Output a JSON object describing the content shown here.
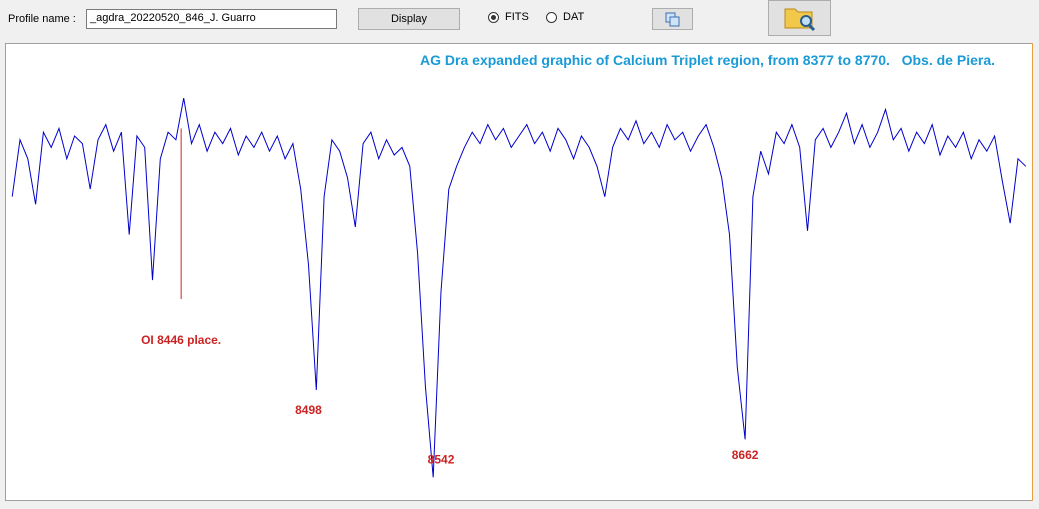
{
  "toolbar": {
    "profile_label": "Profile name :",
    "profile_value": "_agdra_20220520_846_J. Guarro",
    "display_button": "Display",
    "formats": [
      "FITS",
      "DAT"
    ],
    "selected_format": "FITS"
  },
  "chart_data": {
    "type": "line",
    "title": "AG Dra expanded graphic of Calcium Triplet region, from 8377 to 8770.   Obs. de Piera.",
    "x": [
      8381,
      8384,
      8387,
      8390,
      8393,
      8396,
      8399,
      8402,
      8405,
      8408,
      8411,
      8414,
      8417,
      8420,
      8423,
      8426,
      8429,
      8432,
      8435,
      8438,
      8441,
      8444,
      8447,
      8450,
      8453,
      8456,
      8459,
      8462,
      8465,
      8468,
      8471,
      8474,
      8477,
      8480,
      8483,
      8486,
      8489,
      8492,
      8495,
      8498,
      8501,
      8504,
      8507,
      8510,
      8513,
      8516,
      8519,
      8522,
      8525,
      8528,
      8531,
      8534,
      8537,
      8540,
      8543,
      8546,
      8549,
      8552,
      8555,
      8558,
      8561,
      8564,
      8567,
      8570,
      8573,
      8576,
      8579,
      8582,
      8585,
      8588,
      8591,
      8594,
      8597,
      8600,
      8603,
      8606,
      8609,
      8612,
      8615,
      8618,
      8621,
      8624,
      8627,
      8630,
      8633,
      8636,
      8639,
      8642,
      8645,
      8648,
      8651,
      8654,
      8657,
      8660,
      8663,
      8666,
      8669,
      8672,
      8675,
      8678,
      8681,
      8684,
      8687,
      8690,
      8693,
      8696,
      8699,
      8702,
      8705,
      8708,
      8711,
      8714,
      8717,
      8720,
      8723,
      8726,
      8729,
      8732,
      8735,
      8738,
      8741,
      8744,
      8747,
      8750,
      8753,
      8756,
      8759,
      8762,
      8765,
      8768,
      8771
    ],
    "series": [
      {
        "color": "#0000cc",
        "values": [
          0.8,
          0.95,
          0.9,
          0.78,
          0.97,
          0.93,
          0.98,
          0.9,
          0.96,
          0.94,
          0.82,
          0.95,
          0.99,
          0.92,
          0.97,
          0.7,
          0.96,
          0.93,
          0.58,
          0.9,
          0.97,
          0.95,
          1.06,
          0.94,
          0.99,
          0.92,
          0.97,
          0.94,
          0.98,
          0.91,
          0.96,
          0.93,
          0.97,
          0.92,
          0.96,
          0.9,
          0.94,
          0.82,
          0.62,
          0.29,
          0.8,
          0.95,
          0.92,
          0.85,
          0.72,
          0.94,
          0.97,
          0.9,
          0.95,
          0.91,
          0.93,
          0.88,
          0.65,
          0.3,
          0.06,
          0.55,
          0.82,
          0.88,
          0.93,
          0.97,
          0.94,
          0.99,
          0.95,
          0.98,
          0.93,
          0.96,
          0.99,
          0.94,
          0.97,
          0.92,
          0.98,
          0.95,
          0.9,
          0.96,
          0.93,
          0.88,
          0.8,
          0.93,
          0.98,
          0.95,
          1.0,
          0.94,
          0.97,
          0.93,
          0.99,
          0.95,
          0.97,
          0.92,
          0.96,
          0.99,
          0.93,
          0.85,
          0.7,
          0.35,
          0.16,
          0.8,
          0.92,
          0.86,
          0.97,
          0.94,
          0.99,
          0.93,
          0.71,
          0.95,
          0.98,
          0.93,
          0.97,
          1.02,
          0.94,
          0.99,
          0.93,
          0.97,
          1.03,
          0.95,
          0.98,
          0.92,
          0.97,
          0.94,
          0.99,
          0.91,
          0.96,
          0.93,
          0.97,
          0.9,
          0.95,
          0.92,
          0.96,
          0.84,
          0.73,
          0.9,
          0.88
        ]
      }
    ],
    "xlim": [
      8379,
      8773
    ],
    "ylim": [
      0,
      1.2
    ],
    "annotation_color": "#cc2222",
    "annotations": [
      {
        "text": "OI 8446 place.",
        "x": 8446,
        "y": 0.42,
        "line_y": [
          0.53,
          0.98
        ]
      },
      {
        "text": "8498",
        "x": 8495,
        "y": 0.235
      },
      {
        "text": "8542",
        "x": 8546,
        "y": 0.105
      },
      {
        "text": "8662",
        "x": 8663,
        "y": 0.116
      }
    ]
  }
}
